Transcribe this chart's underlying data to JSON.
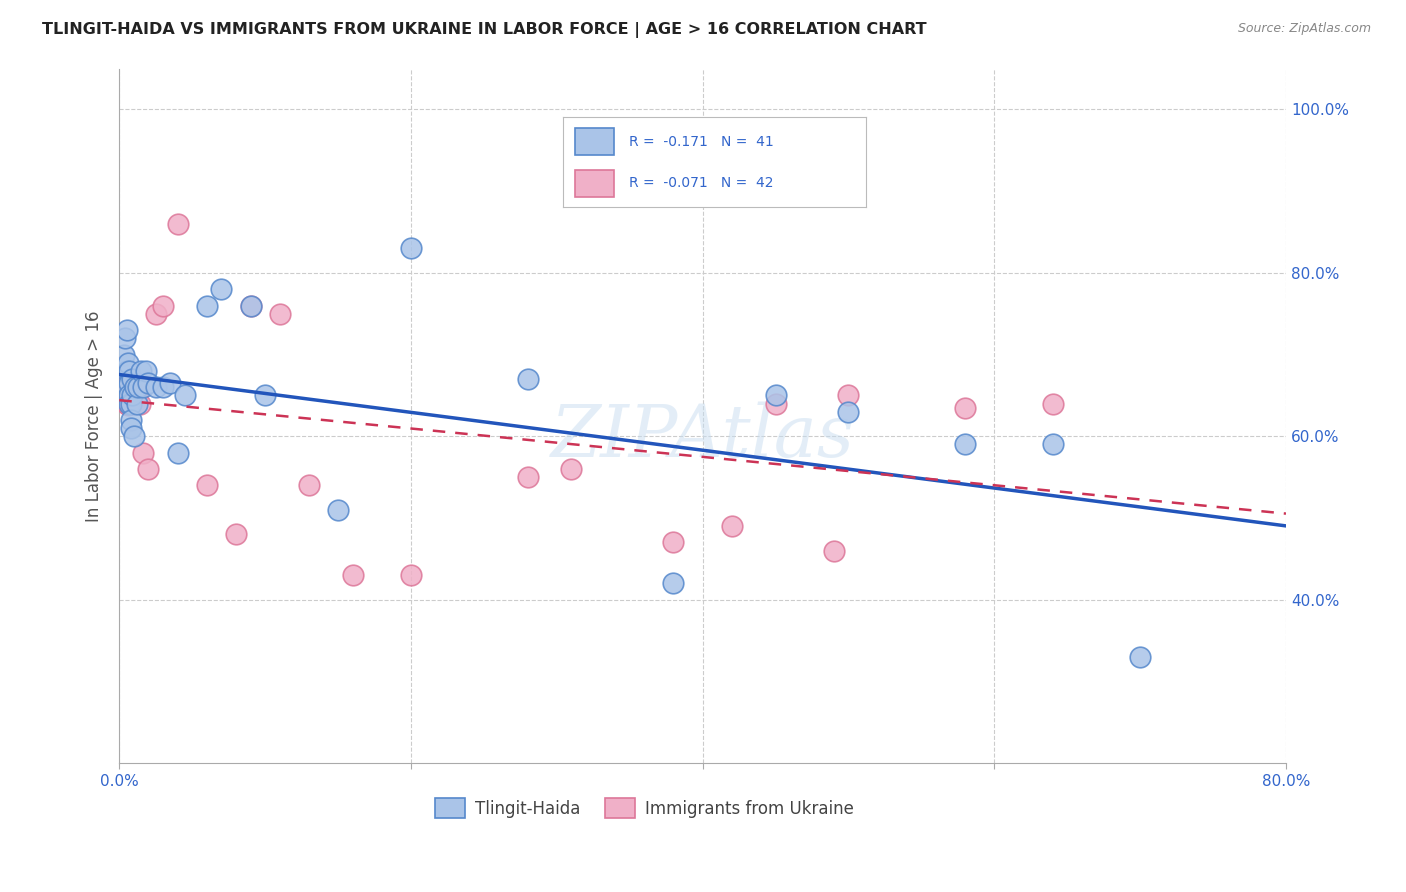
{
  "title": "TLINGIT-HAIDA VS IMMIGRANTS FROM UKRAINE IN LABOR FORCE | AGE > 16 CORRELATION CHART",
  "source": "Source: ZipAtlas.com",
  "ylabel": "In Labor Force | Age > 16",
  "xlim": [
    0.0,
    0.8
  ],
  "ylim": [
    0.2,
    1.05
  ],
  "yticks": [
    0.4,
    0.6,
    0.8,
    1.0
  ],
  "xticks": [
    0.0,
    0.2,
    0.4,
    0.6,
    0.8
  ],
  "xtick_labels": [
    "0.0%",
    "",
    "",
    "",
    "80.0%"
  ],
  "ytick_labels": [
    "40.0%",
    "60.0%",
    "80.0%",
    "100.0%"
  ],
  "background_color": "#ffffff",
  "grid_color": "#cccccc",
  "watermark": "ZIPAtlas",
  "tlingit_color": "#aac4e8",
  "ukraine_color": "#f0b0c8",
  "tlingit_edge": "#5588cc",
  "ukraine_edge": "#dd7799",
  "tlingit_R": -0.171,
  "tlingit_N": 41,
  "ukraine_R": -0.071,
  "ukraine_N": 42,
  "legend_color": "#3366cc",
  "tlingit_x": [
    0.003,
    0.004,
    0.005,
    0.005,
    0.006,
    0.006,
    0.007,
    0.007,
    0.007,
    0.007,
    0.008,
    0.008,
    0.008,
    0.009,
    0.009,
    0.01,
    0.011,
    0.012,
    0.013,
    0.015,
    0.016,
    0.018,
    0.02,
    0.025,
    0.03,
    0.035,
    0.04,
    0.045,
    0.06,
    0.07,
    0.09,
    0.1,
    0.15,
    0.2,
    0.28,
    0.38,
    0.45,
    0.5,
    0.58,
    0.64,
    0.7
  ],
  "tlingit_y": [
    0.7,
    0.72,
    0.73,
    0.68,
    0.69,
    0.66,
    0.68,
    0.665,
    0.65,
    0.64,
    0.64,
    0.62,
    0.61,
    0.67,
    0.65,
    0.6,
    0.66,
    0.64,
    0.66,
    0.68,
    0.66,
    0.68,
    0.665,
    0.66,
    0.66,
    0.665,
    0.58,
    0.65,
    0.76,
    0.78,
    0.76,
    0.65,
    0.51,
    0.83,
    0.67,
    0.42,
    0.65,
    0.63,
    0.59,
    0.59,
    0.33
  ],
  "ukraine_x": [
    0.003,
    0.003,
    0.004,
    0.005,
    0.005,
    0.005,
    0.006,
    0.006,
    0.006,
    0.006,
    0.006,
    0.007,
    0.007,
    0.007,
    0.007,
    0.008,
    0.008,
    0.009,
    0.01,
    0.012,
    0.014,
    0.016,
    0.02,
    0.025,
    0.03,
    0.04,
    0.06,
    0.08,
    0.09,
    0.11,
    0.13,
    0.16,
    0.2,
    0.28,
    0.31,
    0.38,
    0.42,
    0.45,
    0.49,
    0.5,
    0.58,
    0.64
  ],
  "ukraine_y": [
    0.65,
    0.66,
    0.66,
    0.66,
    0.65,
    0.64,
    0.66,
    0.65,
    0.645,
    0.64,
    0.638,
    0.65,
    0.648,
    0.645,
    0.64,
    0.66,
    0.65,
    0.65,
    0.64,
    0.65,
    0.64,
    0.58,
    0.56,
    0.75,
    0.76,
    0.86,
    0.54,
    0.48,
    0.76,
    0.75,
    0.54,
    0.43,
    0.43,
    0.55,
    0.56,
    0.47,
    0.49,
    0.64,
    0.46,
    0.65,
    0.635,
    0.64
  ]
}
